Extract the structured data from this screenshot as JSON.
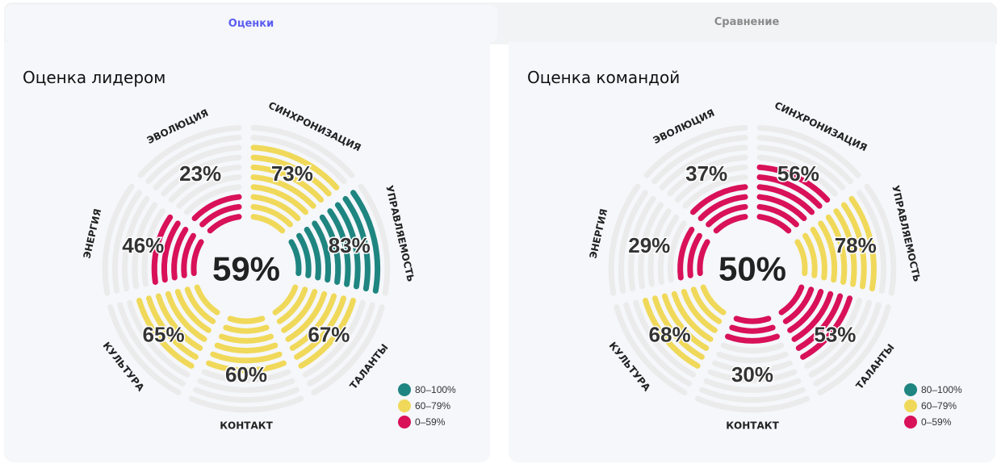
{
  "tabs": [
    {
      "label": "Оценки",
      "active": true
    },
    {
      "label": "Сравнение",
      "active": false
    }
  ],
  "colors": {
    "high": "#1f8580",
    "mid": "#f0d95a",
    "low": "#d81159",
    "empty": "#ebebeb",
    "active_tab_text": "#5b5ef0"
  },
  "legend": [
    {
      "label": "80–100%",
      "color": "#1f8580"
    },
    {
      "label": "60–79%",
      "color": "#f0d95a"
    },
    {
      "label": "0–59%",
      "color": "#d81159"
    }
  ],
  "chart_data": [
    {
      "type": "radial-segmented",
      "title": "Оценка лидером",
      "center_value": 59,
      "max": 100,
      "rings": 10,
      "categories": [
        "СИНХРОНИЗАЦИЯ",
        "УПРАВЛЯЕМОСТЬ",
        "ТАЛАНТЫ",
        "КОНТАКТ",
        "КУЛЬТУРА",
        "ЭНЕРГИЯ",
        "ЭВОЛЮЦИЯ"
      ],
      "values": [
        73,
        83,
        67,
        60,
        65,
        46,
        23
      ]
    },
    {
      "type": "radial-segmented",
      "title": "Оценка командой",
      "center_value": 50,
      "max": 100,
      "rings": 10,
      "categories": [
        "СИНХРОНИЗАЦИЯ",
        "УПРАВЛЯЕМОСТЬ",
        "ТАЛАНТЫ",
        "КОНТАКТ",
        "КУЛЬТУРА",
        "ЭНЕРГИЯ",
        "ЭВОЛЮЦИЯ"
      ],
      "values": [
        56,
        78,
        53,
        30,
        68,
        29,
        37
      ]
    }
  ]
}
